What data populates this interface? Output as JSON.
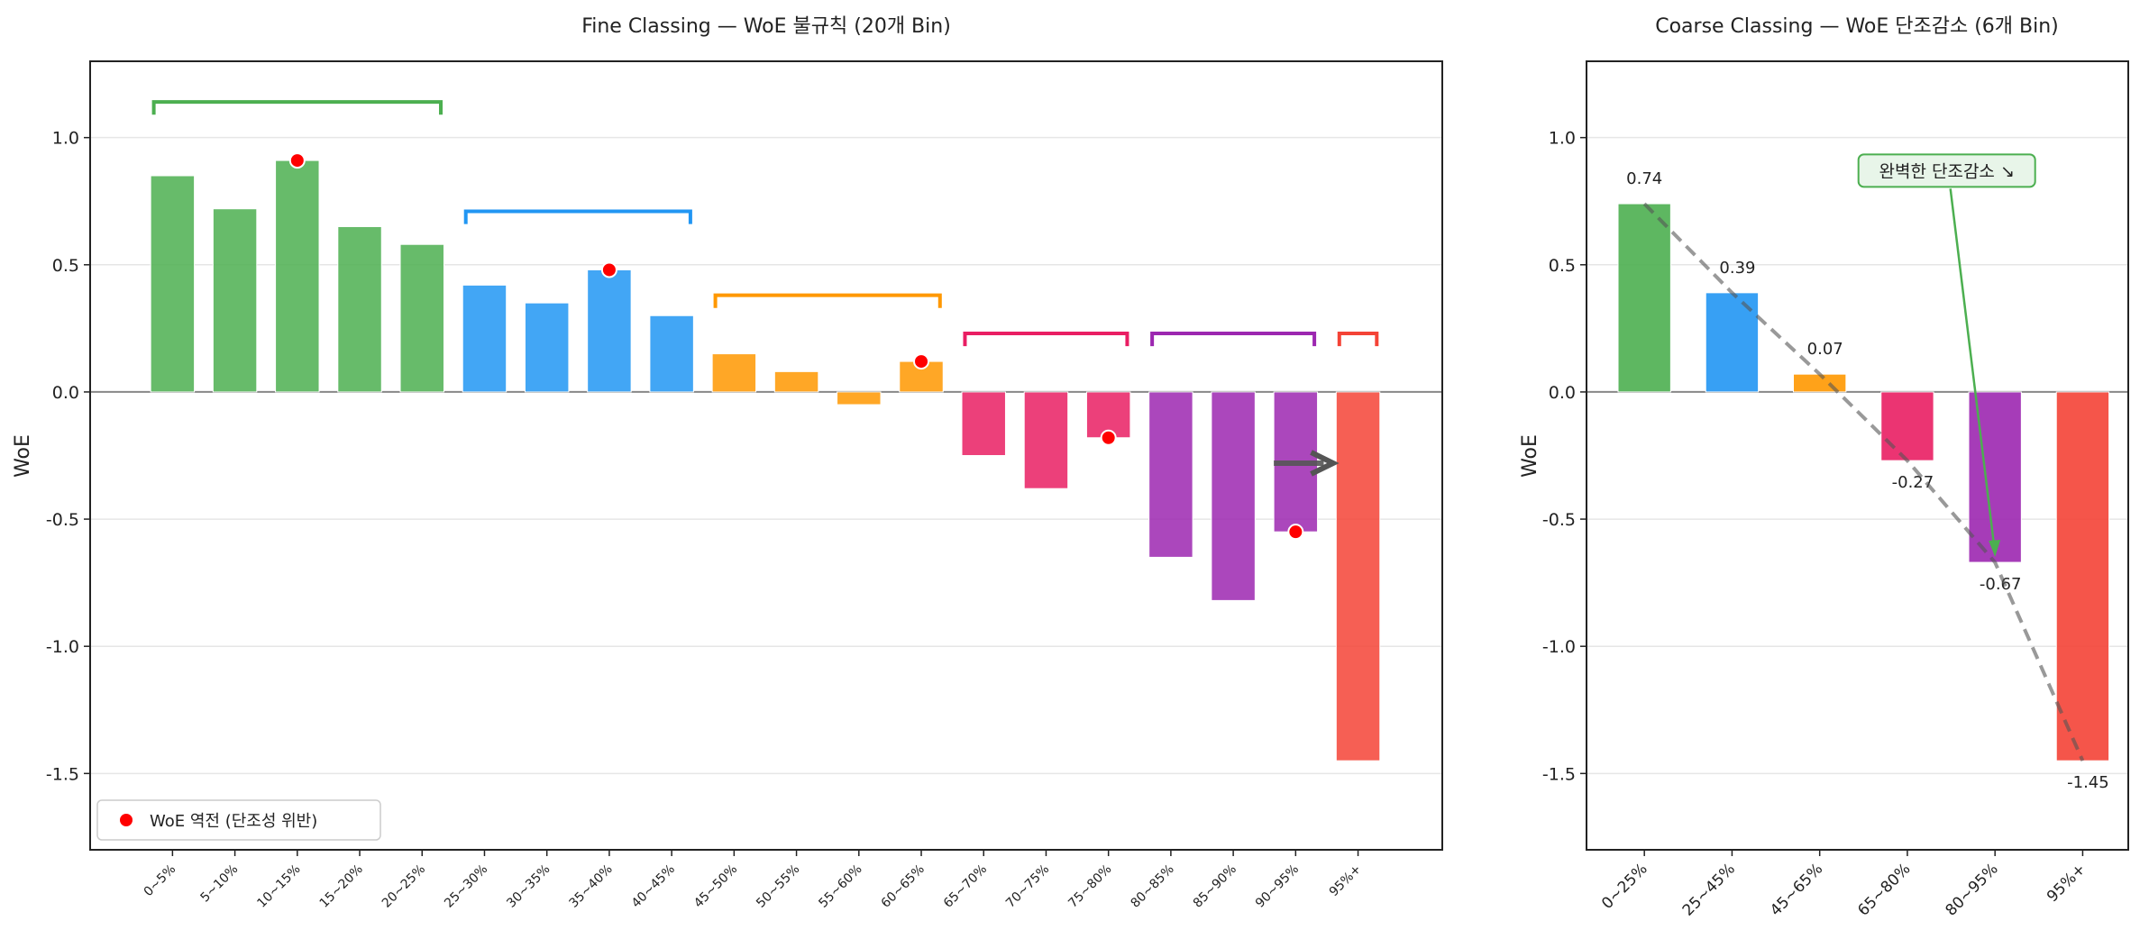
{
  "chart_data": [
    {
      "type": "bar",
      "title": "Fine Classing — WoE 불규칙 (20개 Bin)",
      "xlabel": "",
      "ylabel": "WoE",
      "ylim": [
        -1.8,
        1.3
      ],
      "yticks": [
        "-1.5",
        "-1.0",
        "-0.5",
        "0.0",
        "0.5",
        "1.0"
      ],
      "grid": "horizontal",
      "categories": [
        "0~5%",
        "5~10%",
        "10~15%",
        "15~20%",
        "20~25%",
        "25~30%",
        "30~35%",
        "35~40%",
        "40~45%",
        "45~50%",
        "50~55%",
        "55~60%",
        "60~65%",
        "65~70%",
        "70~75%",
        "75~80%",
        "80~85%",
        "85~90%",
        "90~95%",
        "95%+"
      ],
      "values": [
        0.85,
        0.72,
        0.91,
        0.65,
        0.58,
        0.42,
        0.35,
        0.48,
        0.3,
        0.15,
        0.08,
        -0.05,
        0.12,
        -0.25,
        -0.38,
        -0.18,
        -0.65,
        -0.82,
        -0.55,
        -1.45
      ],
      "groups": [
        {
          "bins": [
            0,
            4
          ],
          "color": "#4CAF50",
          "bracket_level": 1.14
        },
        {
          "bins": [
            5,
            8
          ],
          "color": "#2196F3",
          "bracket_level": 0.71
        },
        {
          "bins": [
            9,
            12
          ],
          "color": "#FF9800",
          "bracket_level": 0.38
        },
        {
          "bins": [
            13,
            15
          ],
          "color": "#E91E63",
          "bracket_level": 0.23
        },
        {
          "bins": [
            16,
            18
          ],
          "color": "#9C27B0",
          "bracket_level": 0.23
        },
        {
          "bins": [
            19,
            19
          ],
          "color": "#F44336",
          "bracket_level": 0.23
        }
      ],
      "violations": [
        {
          "category": "10~15%",
          "value": 0.91
        },
        {
          "category": "35~40%",
          "value": 0.48
        },
        {
          "category": "60~65%",
          "value": 0.12
        },
        {
          "category": "75~80%",
          "value": -0.18
        },
        {
          "category": "90~95%",
          "value": -0.55
        }
      ],
      "violation_color": "#FF0000",
      "legend": {
        "label": "WoE 역전 (단조성 위반)",
        "placement": "lower-left"
      },
      "arrow": {
        "from_category": "90~95%",
        "to_category": "95%+",
        "value": -0.28,
        "color": "#555555"
      }
    },
    {
      "type": "bar",
      "title": "Coarse Classing — WoE 단조감소 (6개 Bin)",
      "xlabel": "",
      "ylabel": "WoE",
      "ylim": [
        -1.8,
        1.3
      ],
      "yticks": [
        "-1.5",
        "-1.0",
        "-0.5",
        "0.0",
        "0.5",
        "1.0"
      ],
      "grid": "horizontal",
      "categories": [
        "0~25%",
        "25~45%",
        "45~65%",
        "65~80%",
        "80~95%",
        "95%+"
      ],
      "values": [
        0.74,
        0.39,
        0.07,
        -0.27,
        -0.67,
        -1.45
      ],
      "data_labels": [
        "0.74",
        "0.39",
        "0.07",
        "-0.27",
        "-0.67",
        "-1.45"
      ],
      "colors": [
        "#4CAF50",
        "#2196F3",
        "#FF9800",
        "#E91E63",
        "#9C27B0",
        "#F44336"
      ],
      "trend_line": {
        "style": "dashed",
        "color": "#555555"
      },
      "annotation": {
        "text": "완벽한 단조감소 ↘",
        "x_position": 3.45,
        "y_position": 0.87,
        "points_to_category": "80~95%",
        "points_to_value": -0.67,
        "color": "#4CAF50",
        "background": "#E8F5E9"
      }
    }
  ]
}
